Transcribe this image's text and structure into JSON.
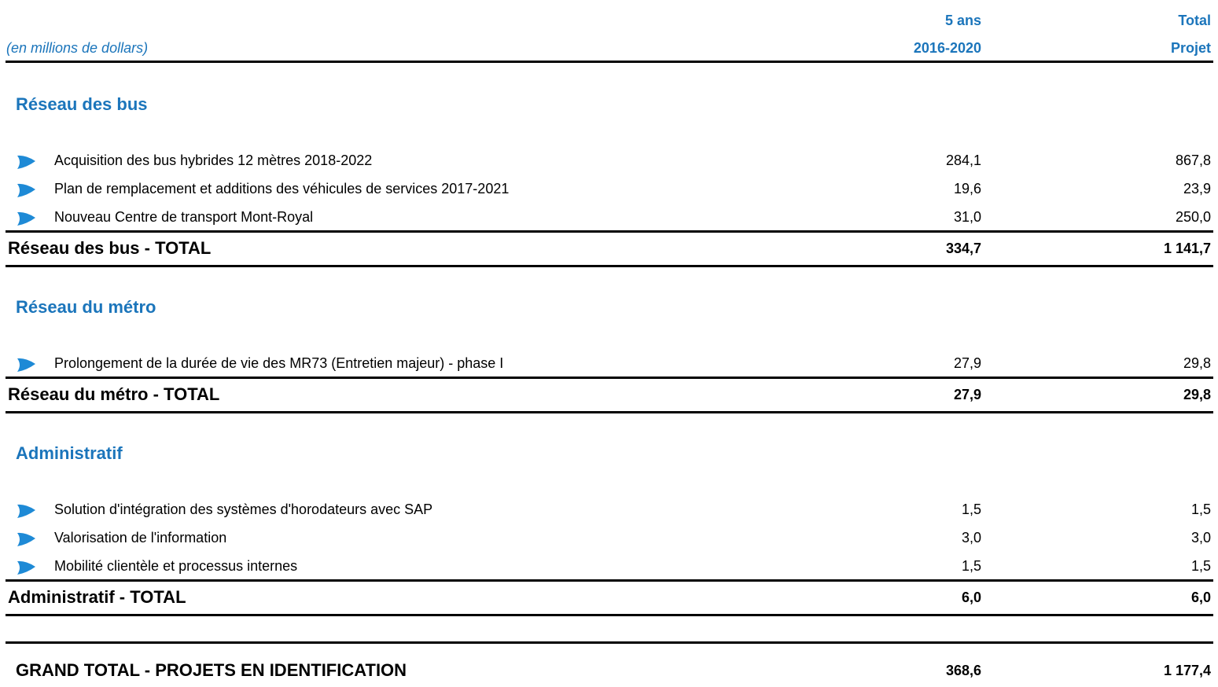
{
  "header": {
    "unit": "(en millions de dollars)",
    "col_five_year": [
      "5 ans",
      "2016-2020"
    ],
    "col_total": [
      "Total",
      "Projet"
    ]
  },
  "sections": [
    {
      "title": "Réseau des bus",
      "items": [
        {
          "label": "Acquisition des bus hybrides 12 mètres 2018-2022",
          "five_year": "284,1",
          "total": "867,8"
        },
        {
          "label": "Plan de remplacement et additions des véhicules de services 2017-2021",
          "five_year": "19,6",
          "total": "23,9"
        },
        {
          "label": "Nouveau Centre de transport Mont-Royal",
          "five_year": "31,0",
          "total": "250,0"
        }
      ],
      "total": {
        "label": "Réseau des bus - TOTAL",
        "five_year": "334,7",
        "total": "1 141,7"
      }
    },
    {
      "title": "Réseau du métro",
      "items": [
        {
          "label": "Prolongement de la durée de vie des MR73 (Entretien majeur) - phase I",
          "five_year": "27,9",
          "total": "29,8"
        }
      ],
      "total": {
        "label": "Réseau du métro - TOTAL",
        "five_year": "27,9",
        "total": "29,8"
      }
    },
    {
      "title": "Administratif",
      "items": [
        {
          "label": "Solution d'intégration des systèmes d'horodateurs avec SAP",
          "five_year": "1,5",
          "total": "1,5"
        },
        {
          "label": "Valorisation de l'information",
          "five_year": "3,0",
          "total": "3,0"
        },
        {
          "label": "Mobilité clientèle et processus internes",
          "five_year": "1,5",
          "total": "1,5"
        }
      ],
      "total": {
        "label": "Administratif - TOTAL",
        "five_year": "6,0",
        "total": "6,0"
      }
    }
  ],
  "grand_total": {
    "label": "GRAND TOTAL - PROJETS EN IDENTIFICATION",
    "five_year": "368,6",
    "total": "1 177,4"
  }
}
